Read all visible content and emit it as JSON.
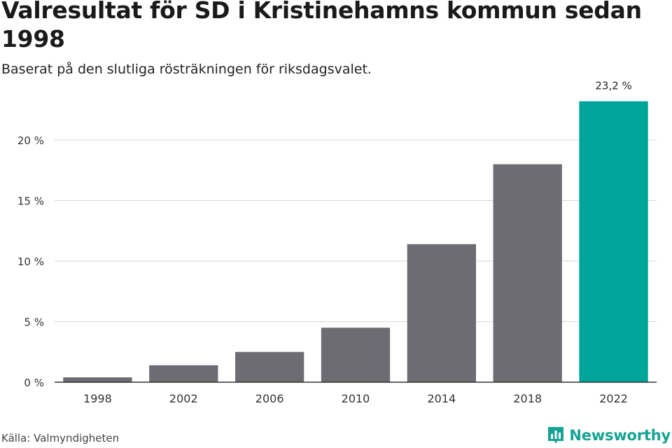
{
  "chart_data": {
    "type": "bar",
    "title": "Valresultat för SD i Kristinehamns kommun sedan 1998",
    "subtitle": "Baserat på den slutliga rösträkningen för riksdagsvalet.",
    "categories": [
      "1998",
      "2002",
      "2006",
      "2010",
      "2014",
      "2018",
      "2022"
    ],
    "values": [
      0.4,
      1.4,
      2.5,
      4.5,
      11.4,
      18.0,
      23.2
    ],
    "value_unit": "%",
    "ylim": [
      0,
      25
    ],
    "yticks": [
      0,
      5,
      10,
      15,
      20
    ],
    "ytick_labels": [
      "0 %",
      "5 %",
      "10 %",
      "15 %",
      "20 %"
    ],
    "data_labels": [
      {
        "category": "2022",
        "text": "23,2 %"
      }
    ],
    "colors": {
      "bar": "#6d6c73",
      "highlight": "#00a59a",
      "grid": "#d8d8d8",
      "axis": "#333333"
    },
    "highlight_category": "2022",
    "grid": true,
    "legend": "none",
    "xlabel": "",
    "ylabel": ""
  },
  "footer": {
    "source": "Källa: Valmyndigheten",
    "brand": "Newsworthy",
    "brand_icon": "newsworthy-logo-icon",
    "brand_color": "#16a394"
  }
}
